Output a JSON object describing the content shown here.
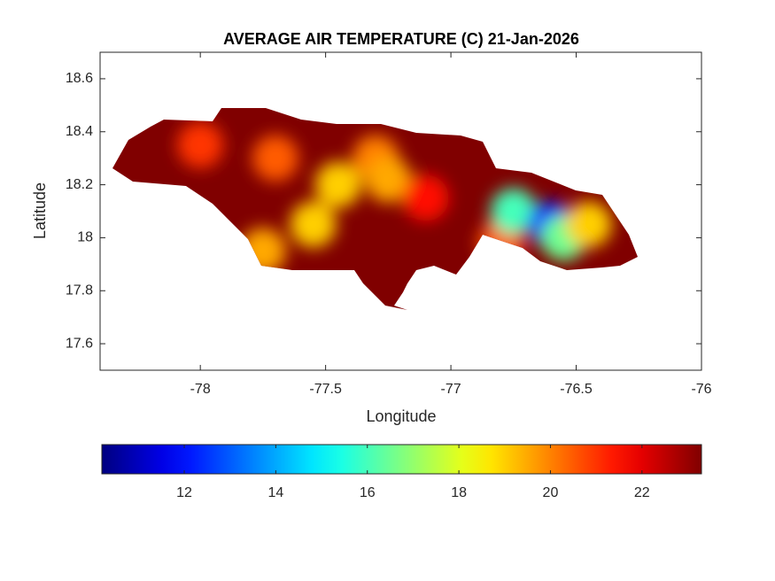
{
  "chart_data": {
    "type": "heatmap",
    "title": "AVERAGE AIR TEMPERATURE (C) 21-Jan-2026",
    "xlabel": "Longitude",
    "ylabel": "Latitude",
    "xlim": [
      -78.4,
      -76
    ],
    "xticks": [
      -78,
      -77.5,
      -77,
      -76.5,
      -76
    ],
    "ylim": [
      17.5,
      18.7
    ],
    "yticks": [
      17.6,
      17.8,
      18,
      18.2,
      18.4,
      18.6
    ],
    "colormap": "jet",
    "colorbar": {
      "clim": [
        10.2,
        23.3
      ],
      "ticks": [
        12,
        14,
        16,
        18,
        20,
        22
      ]
    },
    "field": [
      {
        "lon": -77.45,
        "lat": 18.2,
        "value": 19
      },
      {
        "lon": -77.55,
        "lat": 18.05,
        "value": 19
      },
      {
        "lon": -77.3,
        "lat": 18.3,
        "value": 20
      },
      {
        "lon": -77.7,
        "lat": 18.3,
        "value": 20.5
      },
      {
        "lon": -77.25,
        "lat": 18.22,
        "value": 19.5
      },
      {
        "lon": -78.0,
        "lat": 18.35,
        "value": 21
      },
      {
        "lon": -77.75,
        "lat": 17.95,
        "value": 19.5
      },
      {
        "lon": -77.1,
        "lat": 18.15,
        "value": 21.5
      },
      {
        "lon": -76.8,
        "lat": 17.98,
        "value": 20.5
      },
      {
        "lon": -76.75,
        "lat": 18.1,
        "value": 16
      },
      {
        "lon": -76.6,
        "lat": 18.05,
        "value": 12
      },
      {
        "lon": -76.55,
        "lat": 18.0,
        "value": 16.5
      },
      {
        "lon": -76.45,
        "lat": 18.05,
        "value": 19
      }
    ]
  }
}
